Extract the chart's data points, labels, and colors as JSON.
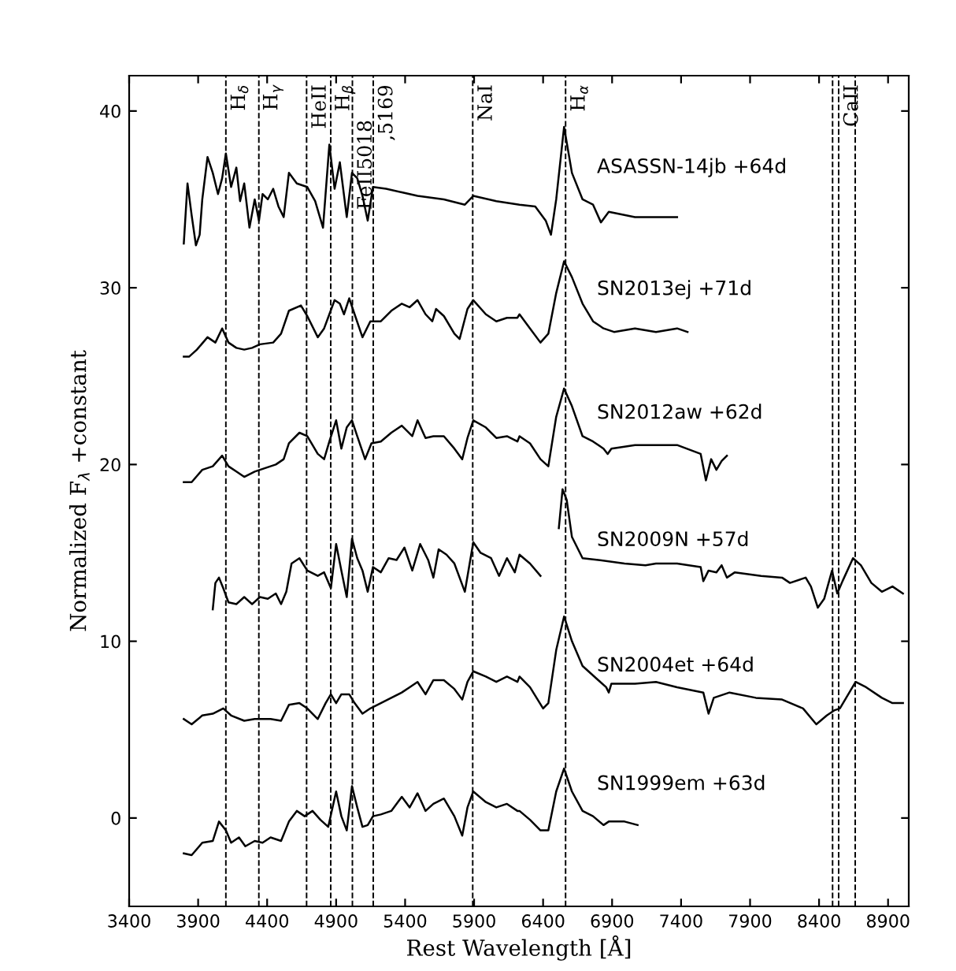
{
  "chart_data": {
    "type": "line",
    "xlabel": "Rest Wavelength [Å]",
    "ylabel": "Normalized F$_{λ}$ +constant",
    "xlim": [
      3400,
      9050
    ],
    "ylim": [
      -5,
      42
    ],
    "xticks": [
      3400,
      3900,
      4400,
      4900,
      5400,
      5900,
      6400,
      6900,
      7400,
      7900,
      8400,
      8900
    ],
    "yticks": [
      0,
      10,
      20,
      30,
      40
    ],
    "grid": false,
    "legend": false,
    "marker": "none",
    "line_style": "solid",
    "ref_lines": [
      {
        "axis": "x",
        "value": 4101,
        "color": "#000000",
        "line_style": "dashed"
      },
      {
        "axis": "x",
        "value": 4340,
        "color": "#000000",
        "line_style": "dashed"
      },
      {
        "axis": "x",
        "value": 4686,
        "color": "#000000",
        "line_style": "dashed"
      },
      {
        "axis": "x",
        "value": 4861,
        "color": "#000000",
        "line_style": "dashed"
      },
      {
        "axis": "x",
        "value": 5018,
        "color": "#000000",
        "line_style": "dashed"
      },
      {
        "axis": "x",
        "value": 5169,
        "color": "#000000",
        "line_style": "dashed"
      },
      {
        "axis": "x",
        "value": 5890,
        "color": "#000000",
        "line_style": "dashed"
      },
      {
        "axis": "x",
        "value": 6563,
        "color": "#000000",
        "line_style": "dashed"
      },
      {
        "axis": "x",
        "value": 8498,
        "color": "#000000",
        "line_style": "dashed"
      },
      {
        "axis": "x",
        "value": 8542,
        "color": "#000000",
        "line_style": "dashed"
      },
      {
        "axis": "x",
        "value": 8662,
        "color": "#000000",
        "line_style": "dashed"
      }
    ],
    "annotations": [
      {
        "text": "H$_{δ}$",
        "x": 4101,
        "y": 41.5
      },
      {
        "text": "H$_{γ}$",
        "x": 4340,
        "y": 41.5
      },
      {
        "text": "HeII",
        "x": 4686,
        "y": 41.5
      },
      {
        "text": "H$_{β}$",
        "x": 4861,
        "y": 41.5
      },
      {
        "text": "FeII5018",
        "x": 5018,
        "y": 39.5
      },
      {
        "text": ",5169",
        "x": 5169,
        "y": 41.5
      },
      {
        "text": "NaI",
        "x": 5890,
        "y": 41.5
      },
      {
        "text": "H$_{α}$",
        "x": 6563,
        "y": 41.5
      },
      {
        "text": "CaII",
        "x": 8542,
        "y": 41.5
      }
    ],
    "series": [
      {
        "name": "ASASSN-14jb +64d",
        "color": "#000000",
        "x": [
          3796,
          3823,
          3853,
          3884,
          3911,
          3930,
          3968,
          4006,
          4044,
          4074,
          4101,
          4139,
          4177,
          4204,
          4234,
          4272,
          4310,
          4341,
          4367,
          4405,
          4444,
          4482,
          4520,
          4558,
          4615,
          4691,
          4748,
          4805,
          4851,
          4889,
          4927,
          4977,
          5015,
          5053,
          5091,
          5129,
          5167,
          5262,
          5376,
          5490,
          5681,
          5833,
          5894,
          6061,
          6229,
          6343,
          6419,
          6457,
          6495,
          6552,
          6609,
          6686,
          6762,
          6819,
          6876,
          7066,
          7218,
          7371
        ],
        "values": [
          32.5,
          35.9,
          34.1,
          32.4,
          33.0,
          35.0,
          37.4,
          36.5,
          35.3,
          36.2,
          37.6,
          35.7,
          36.8,
          34.9,
          35.9,
          33.4,
          35.0,
          33.8,
          35.3,
          35.0,
          35.6,
          34.6,
          34.0,
          36.5,
          35.9,
          35.7,
          34.9,
          33.4,
          38.1,
          35.6,
          37.1,
          34.0,
          36.5,
          36.2,
          35.2,
          33.8,
          35.7,
          35.6,
          35.4,
          35.2,
          35.0,
          34.7,
          35.2,
          34.9,
          34.7,
          34.6,
          33.8,
          33.0,
          35.0,
          39.1,
          36.5,
          35.0,
          34.7,
          33.7,
          34.3,
          34.0,
          34.0,
          34.0
        ]
      },
      {
        "name": "SN2013ej +71d",
        "color": "#000000",
        "x": [
          3796,
          3834,
          3891,
          3968,
          4025,
          4074,
          4120,
          4177,
          4234,
          4291,
          4348,
          4444,
          4501,
          4558,
          4645,
          4691,
          4767,
          4813,
          4851,
          4889,
          4927,
          4957,
          4995,
          5034,
          5091,
          5148,
          5224,
          5300,
          5376,
          5433,
          5490,
          5548,
          5597,
          5624,
          5681,
          5757,
          5795,
          5852,
          5894,
          5985,
          6061,
          6138,
          6214,
          6229,
          6305,
          6381,
          6438,
          6495,
          6552,
          6609,
          6686,
          6762,
          6838,
          6914,
          7066,
          7218,
          7371,
          7447
        ],
        "values": [
          26.1,
          26.1,
          26.5,
          27.2,
          26.9,
          27.7,
          26.9,
          26.6,
          26.5,
          26.6,
          26.8,
          26.9,
          27.4,
          28.7,
          29.0,
          28.4,
          27.2,
          27.7,
          28.5,
          29.3,
          29.1,
          28.5,
          29.4,
          28.5,
          27.2,
          28.1,
          28.1,
          28.7,
          29.1,
          28.9,
          29.3,
          28.5,
          28.1,
          28.8,
          28.4,
          27.4,
          27.1,
          28.8,
          29.3,
          28.5,
          28.1,
          28.3,
          28.3,
          28.5,
          27.7,
          26.9,
          27.4,
          29.7,
          31.5,
          30.6,
          29.1,
          28.1,
          27.7,
          27.5,
          27.7,
          27.5,
          27.7,
          27.5
        ]
      },
      {
        "name": "SN2012aw +62d",
        "color": "#000000",
        "x": [
          3796,
          3853,
          3930,
          4006,
          4074,
          4120,
          4177,
          4234,
          4310,
          4386,
          4463,
          4520,
          4558,
          4634,
          4691,
          4767,
          4813,
          4851,
          4900,
          4938,
          4977,
          5015,
          5053,
          5110,
          5156,
          5224,
          5300,
          5376,
          5452,
          5490,
          5548,
          5605,
          5681,
          5757,
          5814,
          5852,
          5894,
          5985,
          6061,
          6138,
          6214,
          6229,
          6305,
          6381,
          6438,
          6495,
          6552,
          6609,
          6686,
          6762,
          6838,
          6868,
          6895,
          7066,
          7218,
          7371,
          7542,
          7580,
          7618,
          7656,
          7694,
          7732
        ],
        "values": [
          19.0,
          19.0,
          19.7,
          19.9,
          20.5,
          19.9,
          19.6,
          19.3,
          19.6,
          19.8,
          20.0,
          20.3,
          21.2,
          21.8,
          21.6,
          20.6,
          20.3,
          21.3,
          22.5,
          20.9,
          22.1,
          22.5,
          21.6,
          20.3,
          21.2,
          21.3,
          21.8,
          22.2,
          21.6,
          22.5,
          21.5,
          21.6,
          21.6,
          20.9,
          20.3,
          21.5,
          22.5,
          22.1,
          21.5,
          21.6,
          21.3,
          21.6,
          21.2,
          20.3,
          19.9,
          22.7,
          24.3,
          23.3,
          21.6,
          21.3,
          20.9,
          20.6,
          20.9,
          21.1,
          21.1,
          21.1,
          20.6,
          19.1,
          20.3,
          19.7,
          20.2,
          20.5
        ]
      },
      {
        "name": "SN2009N +57d",
        "color": "#000000",
        "x": [
          4006,
          4025,
          4051,
          4082,
          4120,
          4177,
          4234,
          4291,
          4348,
          4405,
          4463,
          4501,
          4539,
          4577,
          4634,
          4691,
          4767,
          4813,
          4862,
          4900,
          4938,
          4977,
          5015,
          5053,
          5091,
          5129,
          5167,
          5224,
          5281,
          5338,
          5395,
          5452,
          5509,
          5567,
          5605,
          5643,
          5700,
          5757,
          5833,
          5894,
          5947,
          6023,
          6081,
          6138,
          6195,
          6229,
          6305,
          6381,
          6450,
          6514,
          6541,
          6571,
          6609,
          6686,
          6800,
          6990,
          7142,
          7218,
          7371,
          7542,
          7561,
          7599,
          7656,
          7694,
          7732,
          7790,
          7980,
          8132,
          8189,
          8303,
          8341,
          8391,
          8437,
          8494,
          8532,
          8570,
          8646,
          8703,
          8779,
          8855,
          8932,
          9008
        ],
        "values": [
          11.8,
          13.3,
          13.6,
          13.0,
          12.2,
          12.1,
          12.5,
          12.1,
          12.5,
          12.4,
          12.7,
          12.1,
          12.8,
          14.4,
          14.7,
          14.0,
          13.7,
          13.9,
          13.0,
          15.5,
          14.0,
          12.5,
          15.8,
          14.7,
          14.0,
          12.8,
          14.2,
          13.9,
          14.7,
          14.6,
          15.3,
          14.0,
          15.5,
          14.6,
          13.6,
          15.2,
          14.9,
          14.4,
          12.8,
          15.6,
          15.0,
          14.7,
          13.7,
          14.7,
          13.9,
          14.9,
          14.4,
          13.7,
          null,
          16.4,
          18.6,
          18.0,
          15.9,
          14.7,
          14.6,
          14.4,
          14.3,
          14.4,
          14.4,
          14.2,
          13.4,
          14.0,
          13.9,
          14.3,
          13.6,
          13.9,
          13.7,
          13.6,
          13.3,
          13.6,
          13.1,
          11.9,
          12.4,
          14.0,
          12.7,
          13.4,
          14.7,
          14.3,
          13.3,
          12.8,
          13.1,
          12.7
        ]
      },
      {
        "name": "SN2004et +64d",
        "color": "#000000",
        "x": [
          3796,
          3853,
          3930,
          4006,
          4082,
          4139,
          4234,
          4310,
          4425,
          4501,
          4558,
          4634,
          4691,
          4767,
          4824,
          4862,
          4900,
          4938,
          4995,
          5034,
          5091,
          5148,
          5224,
          5300,
          5376,
          5433,
          5490,
          5548,
          5605,
          5681,
          5757,
          5814,
          5852,
          5894,
          5985,
          6061,
          6138,
          6214,
          6229,
          6305,
          6400,
          6438,
          6495,
          6552,
          6609,
          6686,
          6800,
          6857,
          6876,
          6895,
          7066,
          7218,
          7371,
          7561,
          7599,
          7637,
          7751,
          7942,
          8132,
          8284,
          8380,
          8456,
          8513,
          8551,
          8665,
          8741,
          8855,
          8932,
          9008
        ],
        "values": [
          5.6,
          5.3,
          5.8,
          5.9,
          6.2,
          5.8,
          5.5,
          5.6,
          5.6,
          5.5,
          6.4,
          6.5,
          6.2,
          5.6,
          6.5,
          7.0,
          6.5,
          7.0,
          7.0,
          6.5,
          5.9,
          6.2,
          6.5,
          6.8,
          7.1,
          7.4,
          7.7,
          7.0,
          7.8,
          7.8,
          7.3,
          6.7,
          7.7,
          8.3,
          8.0,
          7.7,
          8.0,
          7.7,
          8.0,
          7.4,
          6.2,
          6.5,
          9.5,
          11.4,
          10.0,
          8.6,
          7.8,
          7.4,
          7.1,
          7.6,
          7.6,
          7.7,
          7.4,
          7.1,
          5.9,
          6.8,
          7.1,
          6.8,
          6.7,
          6.2,
          5.3,
          5.8,
          6.1,
          6.2,
          7.7,
          7.4,
          6.8,
          6.5,
          6.5
        ]
      },
      {
        "name": "SN1999em +63d",
        "color": "#000000",
        "x": [
          3796,
          3853,
          3930,
          4006,
          4051,
          4101,
          4139,
          4196,
          4242,
          4310,
          4367,
          4425,
          4501,
          4558,
          4615,
          4672,
          4729,
          4786,
          4843,
          4900,
          4938,
          4977,
          5015,
          5053,
          5091,
          5129,
          5167,
          5224,
          5300,
          5376,
          5433,
          5490,
          5548,
          5605,
          5681,
          5757,
          5814,
          5852,
          5894,
          5985,
          6061,
          6138,
          6214,
          6229,
          6305,
          6381,
          6438,
          6495,
          6552,
          6609,
          6686,
          6762,
          6838,
          6876,
          6990,
          7085
        ],
        "values": [
          -2.0,
          -2.1,
          -1.4,
          -1.3,
          -0.2,
          -0.7,
          -1.4,
          -1.1,
          -1.6,
          -1.3,
          -1.4,
          -1.1,
          -1.3,
          -0.2,
          0.4,
          0.1,
          0.4,
          -0.1,
          -0.5,
          1.5,
          0.1,
          -0.7,
          1.8,
          0.6,
          -0.5,
          -0.4,
          0.1,
          0.2,
          0.4,
          1.2,
          0.6,
          1.4,
          0.4,
          0.8,
          1.1,
          0.1,
          -1.0,
          0.6,
          1.5,
          0.9,
          0.6,
          0.8,
          0.4,
          0.4,
          -0.1,
          -0.7,
          -0.7,
          1.5,
          2.8,
          1.5,
          0.4,
          0.1,
          -0.4,
          -0.2,
          -0.2,
          -0.4
        ]
      }
    ]
  }
}
